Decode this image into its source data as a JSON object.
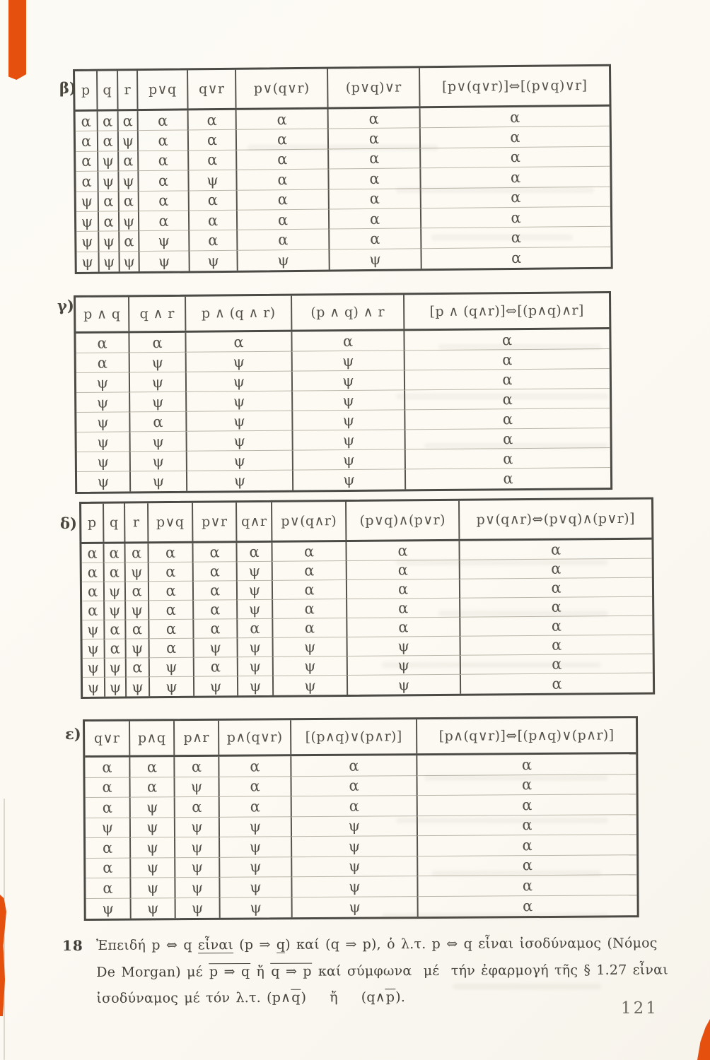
{
  "page": {
    "number": "121",
    "paper_color": "#fbf9f2",
    "ink_color": "#4e4b44",
    "accent_orange": "#e5500e"
  },
  "truth_symbols": {
    "true": "α",
    "false": "ψ"
  },
  "tables": [
    {
      "name": "beta",
      "label": "β)",
      "headers": [
        "p",
        "q",
        "r",
        "p∨q",
        "q∨r",
        "p∨(q∨r)",
        "(p∨q)∨r",
        "[p∨(q∨r)]⇔[(p∨q)∨r]"
      ],
      "rows": [
        [
          "α",
          "α",
          "α",
          "α",
          "α",
          "α",
          "α",
          "α"
        ],
        [
          "α",
          "α",
          "ψ",
          "α",
          "α",
          "α",
          "α",
          "α"
        ],
        [
          "α",
          "ψ",
          "α",
          "α",
          "α",
          "α",
          "α",
          "α"
        ],
        [
          "α",
          "ψ",
          "ψ",
          "α",
          "ψ",
          "α",
          "α",
          "α"
        ],
        [
          "ψ",
          "α",
          "α",
          "α",
          "α",
          "α",
          "α",
          "α"
        ],
        [
          "ψ",
          "α",
          "ψ",
          "α",
          "α",
          "α",
          "α",
          "α"
        ],
        [
          "ψ",
          "ψ",
          "α",
          "ψ",
          "α",
          "α",
          "α",
          "α"
        ],
        [
          "ψ",
          "ψ",
          "ψ",
          "ψ",
          "ψ",
          "ψ",
          "ψ",
          "α"
        ]
      ]
    },
    {
      "name": "gamma",
      "label": "γ)",
      "headers": [
        "p ∧ q",
        "q ∧ r",
        "p ∧ (q ∧ r)",
        "(p ∧ q) ∧ r",
        "[p ∧ (q∧r)]⇔[(p∧q)∧r]"
      ],
      "rows": [
        [
          "α",
          "α",
          "α",
          "α",
          "α"
        ],
        [
          "α",
          "ψ",
          "ψ",
          "ψ",
          "α"
        ],
        [
          "ψ",
          "ψ",
          "ψ",
          "ψ",
          "α"
        ],
        [
          "ψ",
          "ψ",
          "ψ",
          "ψ",
          "α"
        ],
        [
          "ψ",
          "α",
          "ψ",
          "ψ",
          "α"
        ],
        [
          "ψ",
          "ψ",
          "ψ",
          "ψ",
          "α"
        ],
        [
          "ψ",
          "ψ",
          "ψ",
          "ψ",
          "α"
        ],
        [
          "ψ",
          "ψ",
          "ψ",
          "ψ",
          "α"
        ]
      ]
    },
    {
      "name": "delta",
      "label": "δ)",
      "headers": [
        "p",
        "q",
        "r",
        "p∨q",
        "p∨r",
        "q∧r",
        "p∨(q∧r)",
        "(p∨q)∧(p∨r)",
        "p∨(q∧r)⇔(p∨q)∧(p∨r)]"
      ],
      "rows": [
        [
          "α",
          "α",
          "α",
          "α",
          "α",
          "α",
          "α",
          "α",
          "α"
        ],
        [
          "α",
          "α",
          "ψ",
          "α",
          "α",
          "ψ",
          "α",
          "α",
          "α"
        ],
        [
          "α",
          "ψ",
          "α",
          "α",
          "α",
          "ψ",
          "α",
          "α",
          "α"
        ],
        [
          "α",
          "ψ",
          "ψ",
          "α",
          "α",
          "ψ",
          "α",
          "α",
          "α"
        ],
        [
          "ψ",
          "α",
          "α",
          "α",
          "α",
          "α",
          "α",
          "α",
          "α"
        ],
        [
          "ψ",
          "α",
          "ψ",
          "α",
          "ψ",
          "ψ",
          "ψ",
          "ψ",
          "α"
        ],
        [
          "ψ",
          "ψ",
          "α",
          "ψ",
          "α",
          "ψ",
          "ψ",
          "ψ",
          "α"
        ],
        [
          "ψ",
          "ψ",
          "ψ",
          "ψ",
          "ψ",
          "ψ",
          "ψ",
          "ψ",
          "α"
        ]
      ]
    },
    {
      "name": "epsilon",
      "label": "ε)",
      "headers": [
        "q∨r",
        "p∧q",
        "p∧r",
        "p∧(q∨r)",
        "[(p∧q)∨(p∧r)]",
        "[p∧(q∨r)]⇔[(p∧q)∨(p∧r)]"
      ],
      "rows": [
        [
          "α",
          "α",
          "α",
          "α",
          "α",
          "α"
        ],
        [
          "α",
          "α",
          "ψ",
          "α",
          "α",
          "α"
        ],
        [
          "α",
          "ψ",
          "α",
          "α",
          "α",
          "α"
        ],
        [
          "ψ",
          "ψ",
          "ψ",
          "ψ",
          "ψ",
          "α"
        ],
        [
          "α",
          "ψ",
          "ψ",
          "ψ",
          "ψ",
          "α"
        ],
        [
          "α",
          "ψ",
          "ψ",
          "ψ",
          "ψ",
          "α"
        ],
        [
          "α",
          "ψ",
          "ψ",
          "ψ",
          "ψ",
          "α"
        ],
        [
          "ψ",
          "ψ",
          "ψ",
          "ψ",
          "ψ",
          "α"
        ]
      ]
    }
  ],
  "paragraph": {
    "number": "18",
    "lines": [
      {
        "segments": [
          {
            "text": "Ἐπειδή p ⇔ q "
          },
          {
            "text": "εἶναι",
            "underline": true
          },
          {
            "text": " (p ⇒ "
          },
          {
            "text": "q",
            "underline": true
          },
          {
            "text": ") καί (q ⇒ p), ὁ λ.τ. p ⇔ q εἶναι ἰσοδύναμος (Νόμος"
          }
        ]
      },
      {
        "segments": [
          {
            "text": "De Morgan) μέ "
          },
          {
            "text": "p ⇒ q",
            "overline": true
          },
          {
            "text": " ἤ "
          },
          {
            "text": "q ⇒ p",
            "overline": true
          },
          {
            "text": " καί σύμφωνα  μέ  τήν ἐφαρμογή τῆς § 1.27 εἶναι"
          }
        ]
      },
      {
        "segments": [
          {
            "text": "ἰσοδύναμος μέ τόν λ.τ. (p∧"
          },
          {
            "text": "q",
            "overline": true
          },
          {
            "text": ")    ἤ    (q∧"
          },
          {
            "text": "p",
            "overline": true
          },
          {
            "text": ")."
          }
        ]
      }
    ]
  }
}
